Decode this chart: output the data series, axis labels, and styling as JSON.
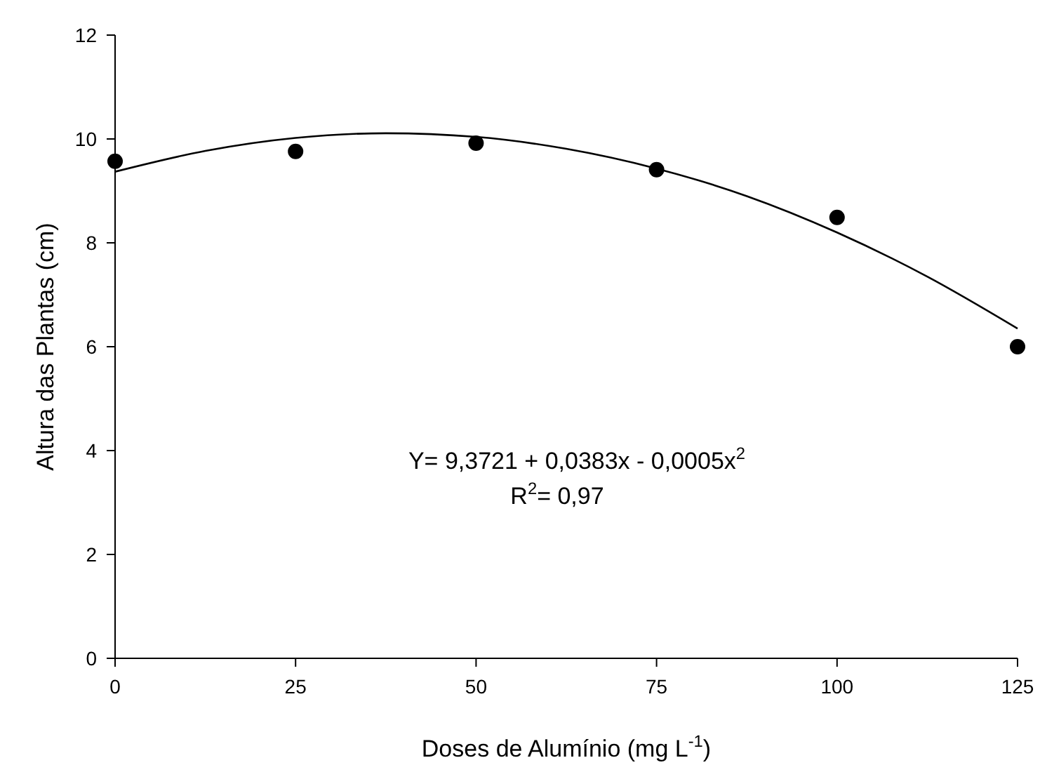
{
  "chart_data": {
    "type": "scatter",
    "xlabel": "Doses de Alumínio (mg L$^{-1}$)",
    "ylabel": "Altura das Plantas (cm)",
    "x": [
      0,
      25,
      50,
      75,
      100,
      125
    ],
    "series": [
      {
        "color": "#000000",
        "marker": "circle",
        "values": [
          9.57,
          9.76,
          9.92,
          9.41,
          8.49,
          6.0
        ]
      },
      {
        "type": "line",
        "color": "#000000",
        "line_style": "solid",
        "x": [
          0,
          12.5,
          25,
          37.5,
          50,
          62.5,
          75,
          87.5,
          100,
          112.5,
          125
        ],
        "values": [
          9.37,
          9.77,
          10.02,
          10.11,
          10.04,
          9.81,
          9.43,
          8.9,
          8.2,
          7.35,
          6.35
        ]
      }
    ],
    "xlim": [
      0,
      125
    ],
    "xticks": [
      0,
      25,
      50,
      75,
      100,
      125
    ],
    "ylim": [
      0,
      12
    ],
    "yticks": [
      0,
      2,
      4,
      6,
      8,
      10,
      12
    ],
    "annotations": [
      "Y= 9,3721 + 0,0383x - 0,0005x$^{2}$",
      "R$^{2}$= 0,97"
    ]
  }
}
